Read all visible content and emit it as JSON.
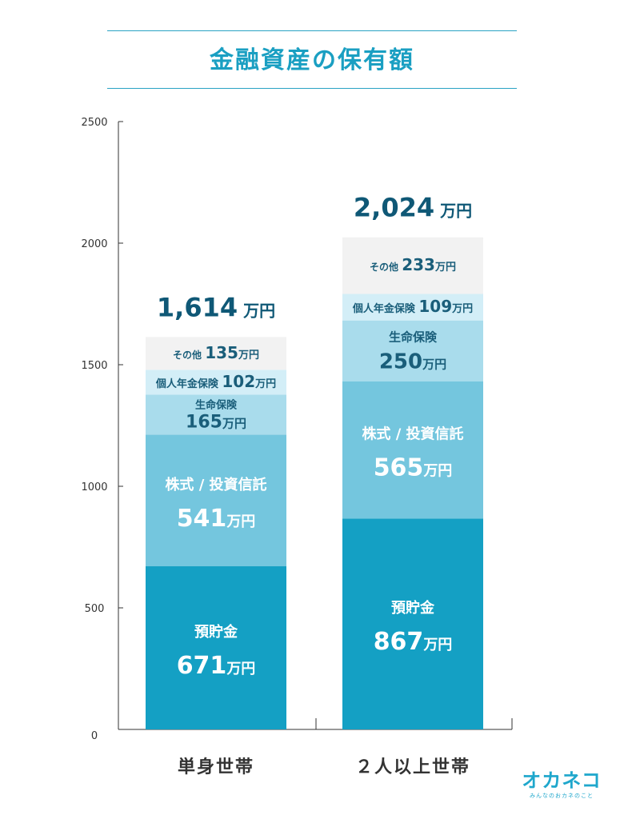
{
  "title": "金融資産の保有額",
  "unit": "万円",
  "colors": {
    "title": "#1a9fc2",
    "axis": "#333333",
    "total": "#0f5876",
    "savings": "#14a0c4",
    "stocks": "#74c6de",
    "life_insurance": "#a9dcec",
    "pension": "#d3eef7",
    "other": "#f2f2f2"
  },
  "logo": {
    "main": "オカネコ",
    "sub": "みんなのおカネのこと"
  },
  "chart_data": {
    "type": "bar",
    "stacked": true,
    "title": "金融資産の保有額",
    "xlabel": "",
    "ylabel": "",
    "ylim": [
      0,
      2500
    ],
    "yticks": [
      0,
      500,
      1000,
      1500,
      2000,
      2500
    ],
    "grid": false,
    "categories": [
      "単身世帯",
      "２人以上世帯"
    ],
    "totals": [
      1614,
      2024
    ],
    "total_labels": [
      "1,614",
      "2,024"
    ],
    "series": [
      {
        "name": "預貯金",
        "values": [
          671,
          867
        ],
        "color_key": "savings"
      },
      {
        "name": "株式 / 投資信託",
        "values": [
          541,
          565
        ],
        "color_key": "stocks"
      },
      {
        "name": "生命保険",
        "values": [
          165,
          250
        ],
        "color_key": "life_insurance"
      },
      {
        "name": "個人年金保険",
        "values": [
          102,
          109
        ],
        "color_key": "pension"
      },
      {
        "name": "その他",
        "values": [
          135,
          233
        ],
        "color_key": "other"
      }
    ]
  }
}
